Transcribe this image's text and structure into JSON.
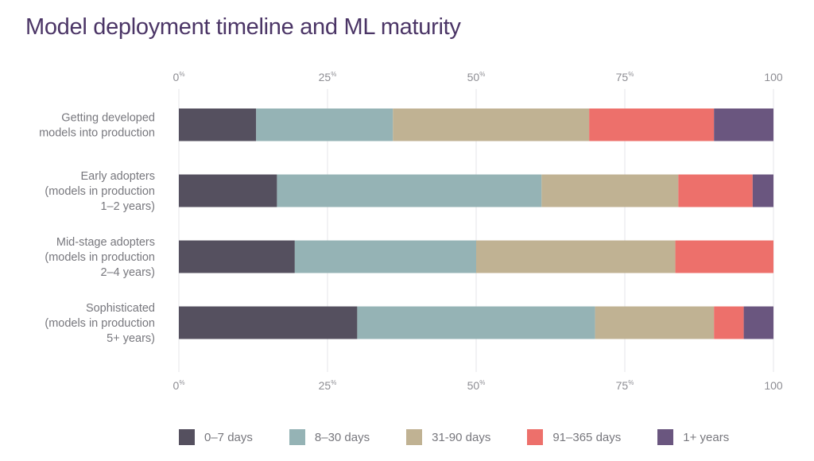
{
  "title": "Model deployment timeline and ML maturity",
  "chart_data": {
    "type": "bar",
    "orientation": "horizontal",
    "stacked": true,
    "title": "Model deployment timeline and ML maturity",
    "xlim": [
      0,
      100
    ],
    "x_ticks": [
      {
        "value": 0,
        "label": "0",
        "suffix": "%"
      },
      {
        "value": 25,
        "label": "25",
        "suffix": "%"
      },
      {
        "value": 50,
        "label": "50",
        "suffix": "%"
      },
      {
        "value": 75,
        "label": "75",
        "suffix": "%"
      },
      {
        "value": 100,
        "label": "100",
        "suffix": ""
      }
    ],
    "ticks_top_and_bottom": true,
    "grid": true,
    "legend_position": "bottom",
    "categories": [
      [
        "Getting developed",
        "models into production"
      ],
      [
        "Early adopters",
        "(models in production",
        "1–2 years)"
      ],
      [
        "Mid-stage adopters",
        "(models in production",
        "2–4 years)"
      ],
      [
        "Sophisticated",
        "(models in production",
        "5+ years)"
      ]
    ],
    "series": [
      {
        "name": "0–7 days",
        "color": "#55505f",
        "values": [
          13,
          16.5,
          19.5,
          30
        ]
      },
      {
        "name": "8–30 days",
        "color": "#95b3b5",
        "values": [
          23,
          44.5,
          30.5,
          40
        ]
      },
      {
        "name": "31-90 days",
        "color": "#c0b293",
        "values": [
          33,
          23,
          33.5,
          20
        ]
      },
      {
        "name": "91–365 days",
        "color": "#ed706b",
        "values": [
          21,
          12.5,
          16.5,
          5
        ]
      },
      {
        "name": "1+ years",
        "color": "#6a567f",
        "values": [
          10,
          3.5,
          0,
          5
        ]
      }
    ]
  }
}
